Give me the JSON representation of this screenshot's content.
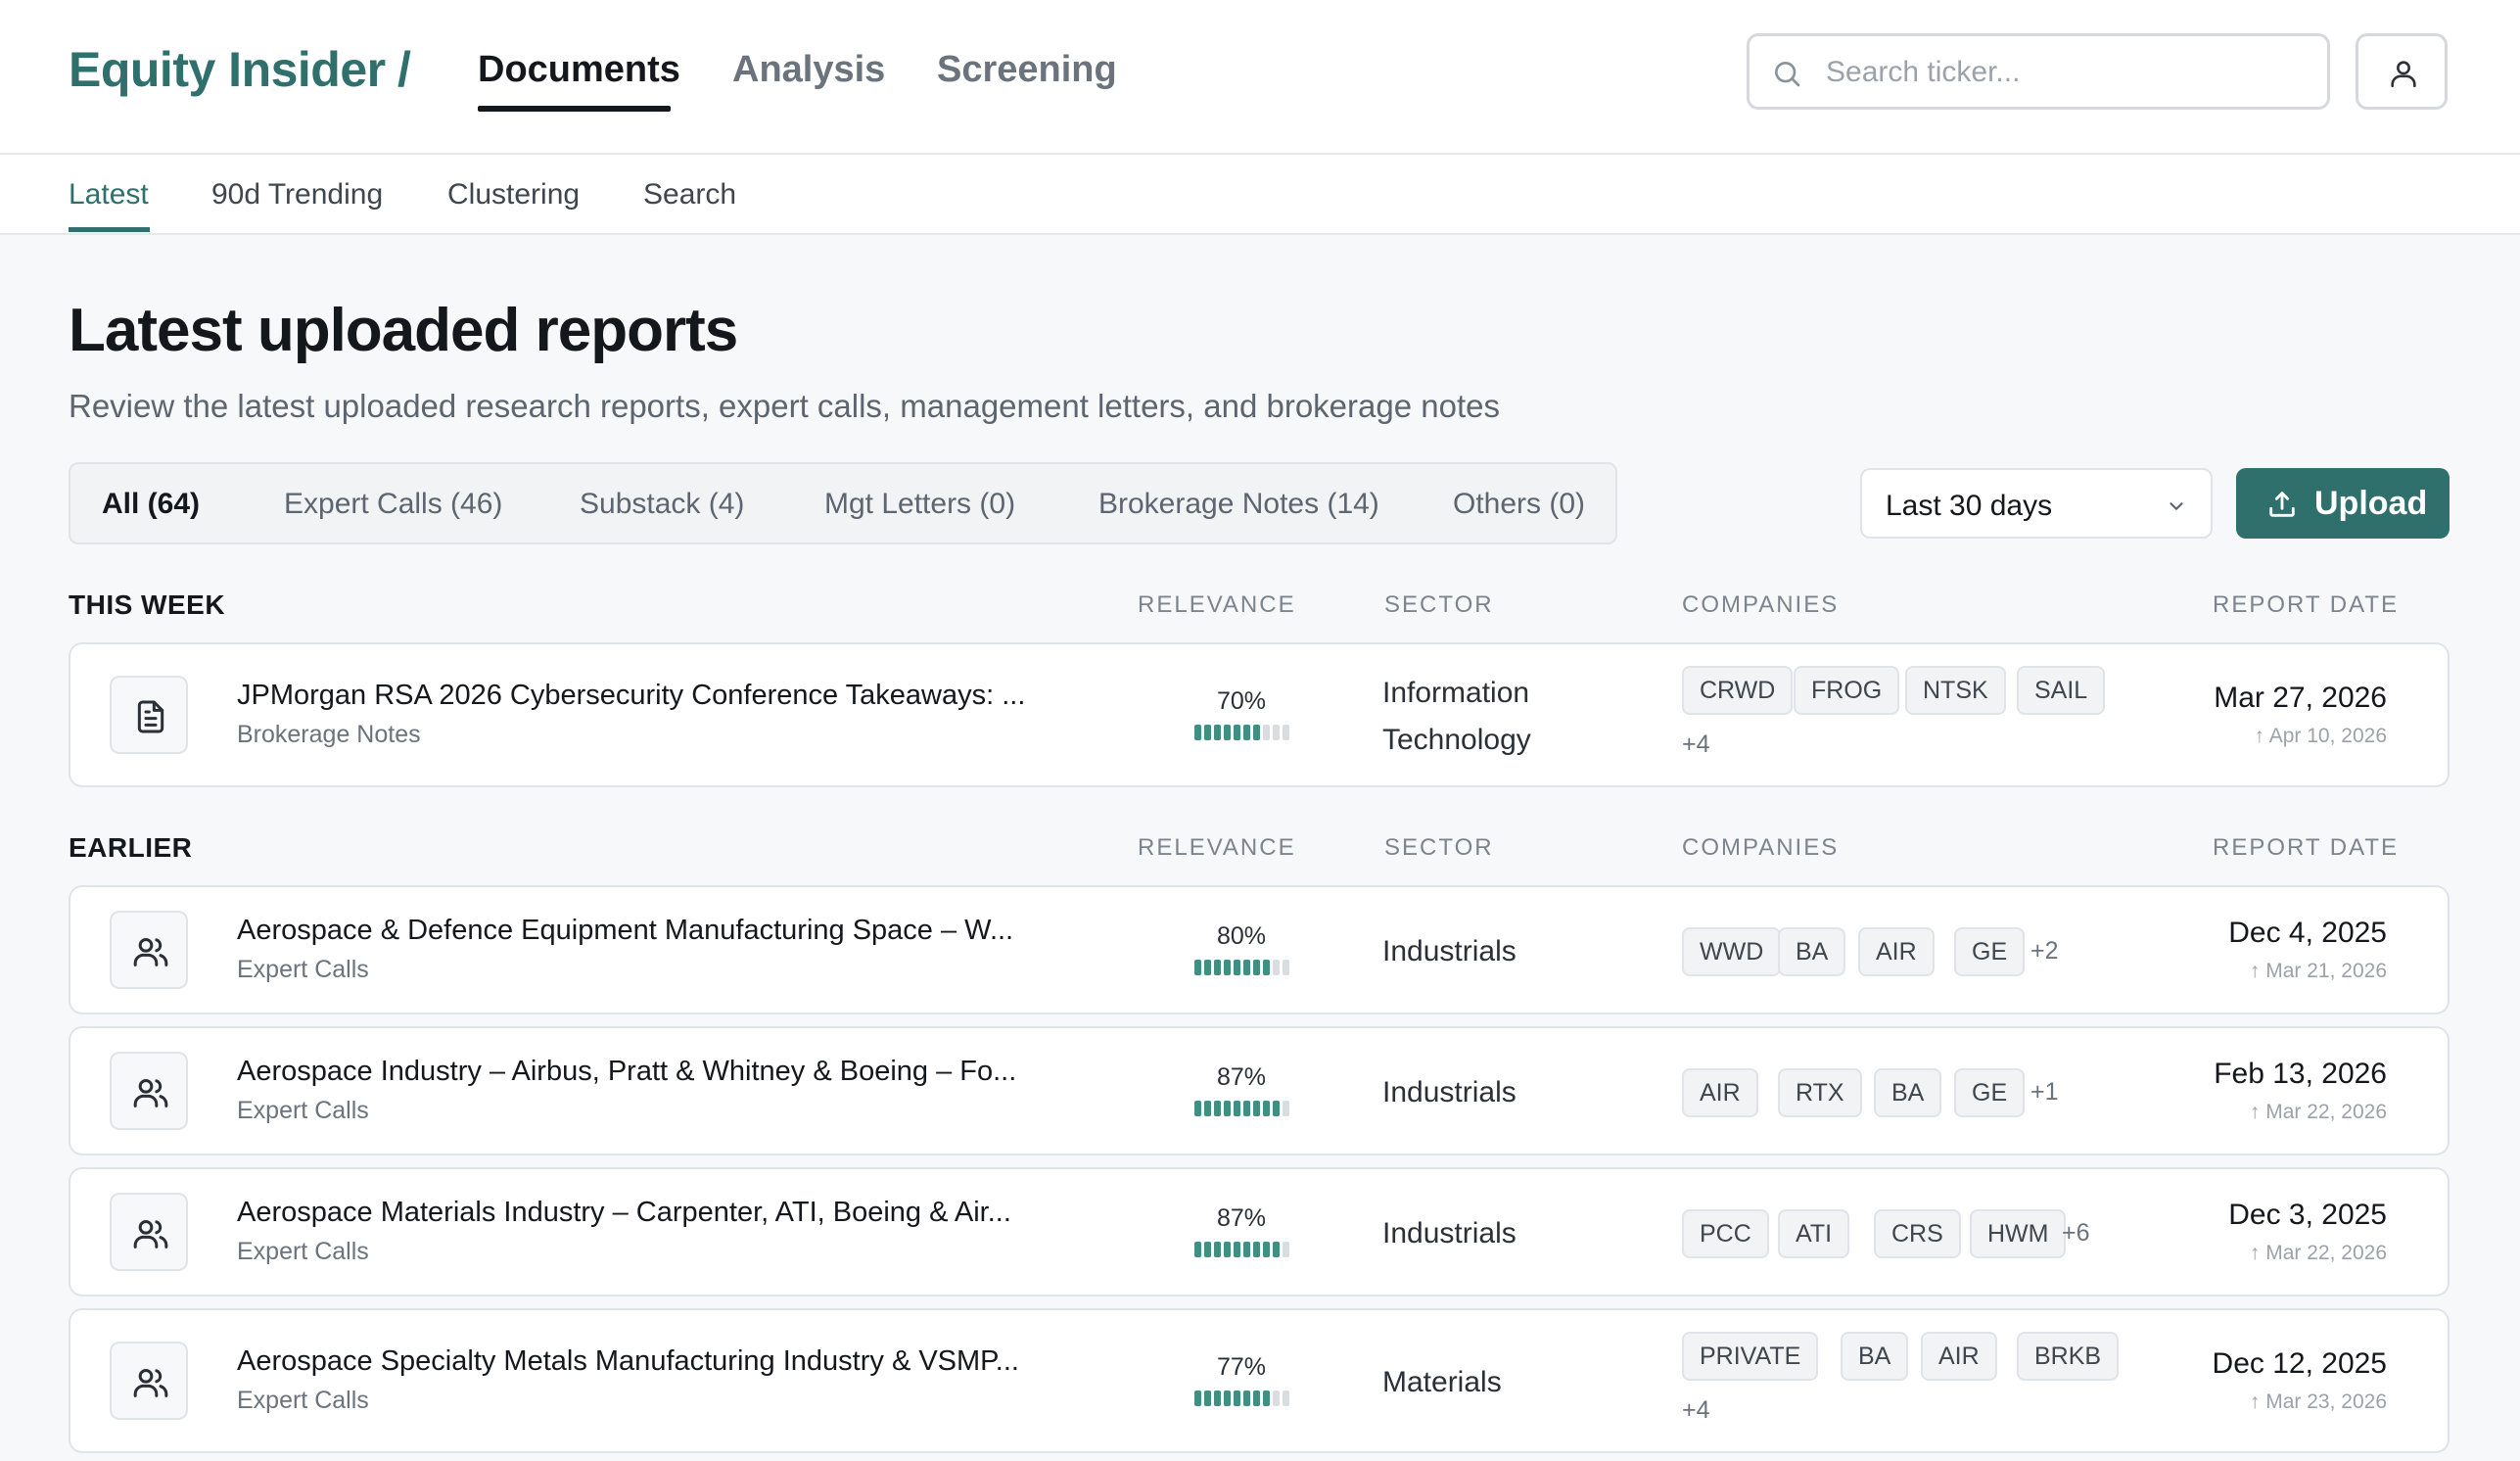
{
  "brand": {
    "name": "Equity Insider",
    "separator": "/"
  },
  "main_tabs": [
    "Documents",
    "Analysis",
    "Screening"
  ],
  "search": {
    "placeholder": "Search ticker..."
  },
  "sub_tabs": [
    "Latest",
    "90d Trending",
    "Clustering",
    "Search"
  ],
  "page": {
    "title": "Latest uploaded reports",
    "subtitle": "Review the latest uploaded research reports, expert calls, management letters, and brokerage notes"
  },
  "filters": [
    "All (64)",
    "Expert Calls (46)",
    "Substack (4)",
    "Mgt Letters (0)",
    "Brokerage Notes (14)",
    "Others (0)"
  ],
  "date_range": "Last 30 days",
  "upload_label": "Upload",
  "columns": {
    "relevance": "RELEVANCE",
    "sector": "SECTOR",
    "companies": "COMPANIES",
    "report_date": "REPORT DATE"
  },
  "sections": [
    {
      "label": "THIS WEEK",
      "rows": [
        {
          "icon": "document-icon",
          "title": "JPMorgan RSA 2026 Cybersecurity Conference Takeaways: ...",
          "type": "Brokerage Notes",
          "relevance": "70%",
          "relevance_value": 0.7,
          "sector": [
            "Information",
            "Technology"
          ],
          "companies": [
            "CRWD",
            "FROG",
            "NTSK",
            "SAIL"
          ],
          "more": "+4",
          "report_date": "Mar 27, 2026",
          "uploaded": "Apr 10, 2026"
        }
      ]
    },
    {
      "label": "EARLIER",
      "rows": [
        {
          "icon": "users-icon",
          "title": "Aerospace & Defence Equipment Manufacturing Space – W...",
          "type": "Expert Calls",
          "relevance": "80%",
          "relevance_value": 0.8,
          "sector": [
            "Industrials"
          ],
          "companies": [
            "WWD",
            "BA",
            "AIR",
            "GE"
          ],
          "more": "+2",
          "report_date": "Dec 4, 2025",
          "uploaded": "Mar 21, 2026"
        },
        {
          "icon": "users-icon",
          "title": "Aerospace Industry – Airbus, Pratt & Whitney & Boeing – Fo...",
          "type": "Expert Calls",
          "relevance": "87%",
          "relevance_value": 0.87,
          "sector": [
            "Industrials"
          ],
          "companies": [
            "AIR",
            "RTX",
            "BA",
            "GE"
          ],
          "more": "+1",
          "report_date": "Feb 13, 2026",
          "uploaded": "Mar 22, 2026"
        },
        {
          "icon": "users-icon",
          "title": "Aerospace Materials Industry – Carpenter, ATI, Boeing & Air...",
          "type": "Expert Calls",
          "relevance": "87%",
          "relevance_value": 0.87,
          "sector": [
            "Industrials"
          ],
          "companies": [
            "PCC",
            "ATI",
            "CRS",
            "HWM"
          ],
          "more": "+6",
          "report_date": "Dec 3, 2025",
          "uploaded": "Mar 22, 2026"
        },
        {
          "icon": "users-icon",
          "title": "Aerospace Specialty Metals Manufacturing Industry & VSMP...",
          "type": "Expert Calls",
          "relevance": "77%",
          "relevance_value": 0.77,
          "sector": [
            "Materials"
          ],
          "companies": [
            "PRIVATE",
            "BA",
            "AIR",
            "BRKB"
          ],
          "more": "+4",
          "report_date": "Dec 12, 2025",
          "uploaded": "Mar 23, 2026"
        }
      ]
    }
  ],
  "colors": {
    "accent": "#2f6f6c",
    "relevance_fill": "#3f8f82",
    "relevance_empty": "#d9dde1"
  }
}
